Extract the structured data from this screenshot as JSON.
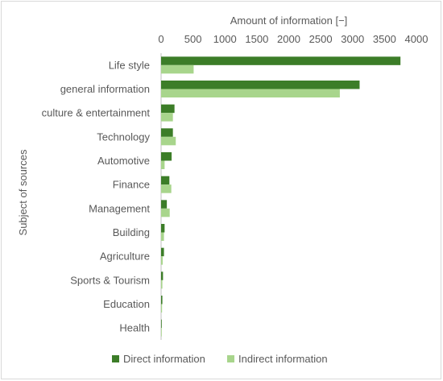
{
  "chart_data": {
    "type": "bar",
    "orientation": "horizontal",
    "title": "",
    "xlabel": "Amount of information [−]",
    "ylabel": "Subject of sources",
    "xlim": [
      0,
      4000
    ],
    "x_ticks": [
      0,
      500,
      1000,
      1500,
      2000,
      2500,
      3000,
      3500,
      4000
    ],
    "x_axis_position": "top",
    "grid": false,
    "legend_position": "bottom",
    "categories": [
      "Life style",
      "general information",
      "culture & entertainment",
      "Technology",
      "Automotive",
      "Finance",
      "Management",
      "Building",
      "Agriculture",
      "Sports & Tourism",
      "Education",
      "Health"
    ],
    "series": [
      {
        "name": "Direct information",
        "color": "#3c7d28",
        "values": [
          3750,
          3110,
          210,
          185,
          165,
          130,
          90,
          55,
          45,
          30,
          20,
          10
        ]
      },
      {
        "name": "Indirect information",
        "color": "#a8d58c",
        "values": [
          510,
          2800,
          185,
          230,
          55,
          160,
          135,
          45,
          25,
          20,
          15,
          5
        ]
      }
    ]
  }
}
